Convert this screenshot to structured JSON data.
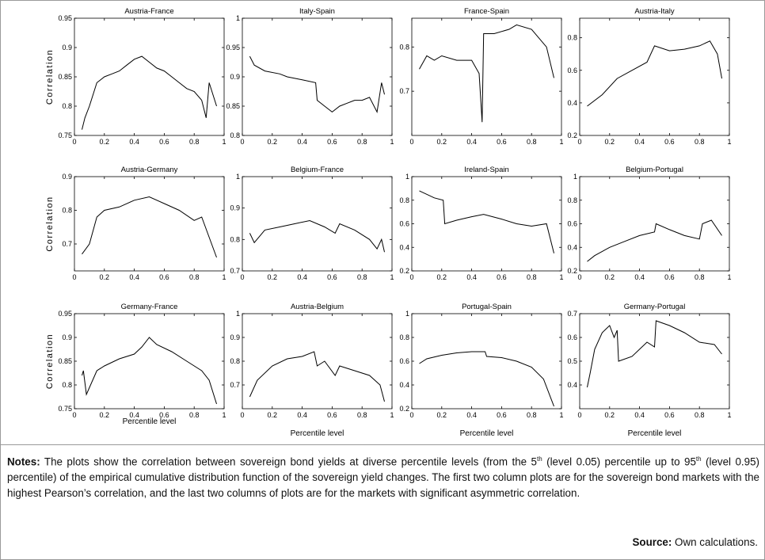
{
  "chart_data": [
    {
      "type": "line",
      "title": "Austria-France",
      "ylabel": "Correlation",
      "color": "#000000",
      "x": [
        0.05,
        0.07,
        0.1,
        0.15,
        0.2,
        0.25,
        0.3,
        0.35,
        0.4,
        0.45,
        0.5,
        0.55,
        0.6,
        0.65,
        0.7,
        0.75,
        0.8,
        0.85,
        0.88,
        0.9,
        0.95
      ],
      "values": [
        0.76,
        0.78,
        0.8,
        0.84,
        0.85,
        0.855,
        0.86,
        0.87,
        0.88,
        0.885,
        0.875,
        0.865,
        0.86,
        0.85,
        0.84,
        0.83,
        0.825,
        0.81,
        0.78,
        0.84,
        0.8
      ],
      "xlim": [
        0,
        1
      ],
      "xticks": [
        0,
        0.2,
        0.4,
        0.6,
        0.8,
        1
      ],
      "ylim": [
        0.75,
        0.95
      ],
      "yticks": [
        0.75,
        0.8,
        0.85,
        0.9,
        0.95
      ]
    },
    {
      "type": "line",
      "title": "Italy-Spain",
      "color": "#000000",
      "x": [
        0.05,
        0.08,
        0.15,
        0.25,
        0.3,
        0.4,
        0.49,
        0.5,
        0.55,
        0.6,
        0.65,
        0.7,
        0.75,
        0.8,
        0.85,
        0.9,
        0.93,
        0.95
      ],
      "values": [
        0.935,
        0.92,
        0.91,
        0.905,
        0.9,
        0.895,
        0.89,
        0.86,
        0.85,
        0.84,
        0.85,
        0.855,
        0.86,
        0.86,
        0.865,
        0.84,
        0.89,
        0.87
      ],
      "xlim": [
        0,
        1
      ],
      "xticks": [
        0,
        0.2,
        0.4,
        0.6,
        0.8,
        1
      ],
      "ylim": [
        0.8,
        1
      ],
      "yticks": [
        0.8,
        0.85,
        0.9,
        0.95,
        1
      ]
    },
    {
      "type": "line",
      "title": "France-Spain",
      "color": "#000000",
      "x": [
        0.05,
        0.1,
        0.15,
        0.2,
        0.3,
        0.4,
        0.45,
        0.47,
        0.48,
        0.55,
        0.65,
        0.7,
        0.8,
        0.9,
        0.95
      ],
      "values": [
        0.75,
        0.78,
        0.77,
        0.78,
        0.77,
        0.77,
        0.74,
        0.63,
        0.83,
        0.83,
        0.84,
        0.85,
        0.84,
        0.8,
        0.73
      ],
      "xlim": [
        0,
        1
      ],
      "xticks": [
        0,
        0.2,
        0.4,
        0.6,
        0.8,
        1
      ],
      "ylim": [
        0.6,
        0.865
      ],
      "yticks": [
        0.7,
        0.8
      ]
    },
    {
      "type": "line",
      "title": "Austria-Italy",
      "color": "#000000",
      "x": [
        0.05,
        0.15,
        0.25,
        0.35,
        0.45,
        0.5,
        0.6,
        0.7,
        0.8,
        0.87,
        0.92,
        0.95
      ],
      "values": [
        0.38,
        0.45,
        0.55,
        0.6,
        0.65,
        0.75,
        0.72,
        0.73,
        0.75,
        0.78,
        0.7,
        0.55
      ],
      "xlim": [
        0,
        1
      ],
      "xticks": [
        0,
        0.2,
        0.4,
        0.6,
        0.8,
        1
      ],
      "ylim": [
        0.2,
        0.92
      ],
      "yticks": [
        0.2,
        0.4,
        0.6,
        0.8
      ]
    },
    {
      "type": "line",
      "title": "Austria-Germany",
      "ylabel": "Correlation",
      "color": "#000000",
      "x": [
        0.05,
        0.1,
        0.15,
        0.2,
        0.3,
        0.4,
        0.5,
        0.6,
        0.7,
        0.8,
        0.85,
        0.9,
        0.95
      ],
      "values": [
        0.67,
        0.7,
        0.78,
        0.8,
        0.81,
        0.83,
        0.84,
        0.82,
        0.8,
        0.77,
        0.78,
        0.72,
        0.66
      ],
      "xlim": [
        0,
        1
      ],
      "xticks": [
        0,
        0.2,
        0.4,
        0.6,
        0.8,
        1
      ],
      "ylim": [
        0.62,
        0.9
      ],
      "yticks": [
        0.7,
        0.8,
        0.9
      ]
    },
    {
      "type": "line",
      "title": "Belgium-France",
      "color": "#000000",
      "x": [
        0.05,
        0.08,
        0.15,
        0.25,
        0.35,
        0.45,
        0.55,
        0.62,
        0.65,
        0.75,
        0.85,
        0.9,
        0.93,
        0.95
      ],
      "values": [
        0.82,
        0.79,
        0.83,
        0.84,
        0.85,
        0.86,
        0.84,
        0.82,
        0.85,
        0.83,
        0.8,
        0.77,
        0.8,
        0.76
      ],
      "xlim": [
        0,
        1
      ],
      "xticks": [
        0,
        0.2,
        0.4,
        0.6,
        0.8,
        1
      ],
      "ylim": [
        0.7,
        1
      ],
      "yticks": [
        0.7,
        0.8,
        0.9,
        1
      ]
    },
    {
      "type": "line",
      "title": "Ireland-Spain",
      "color": "#000000",
      "x": [
        0.05,
        0.15,
        0.21,
        0.22,
        0.3,
        0.4,
        0.48,
        0.6,
        0.7,
        0.8,
        0.9,
        0.95
      ],
      "values": [
        0.88,
        0.82,
        0.8,
        0.6,
        0.63,
        0.66,
        0.68,
        0.64,
        0.6,
        0.58,
        0.6,
        0.35
      ],
      "xlim": [
        0,
        1
      ],
      "xticks": [
        0,
        0.2,
        0.4,
        0.6,
        0.8,
        1
      ],
      "ylim": [
        0.2,
        1
      ],
      "yticks": [
        0.2,
        0.4,
        0.6,
        0.8,
        1
      ]
    },
    {
      "type": "line",
      "title": "Belgium-Portugal",
      "color": "#000000",
      "x": [
        0.05,
        0.1,
        0.2,
        0.3,
        0.4,
        0.5,
        0.51,
        0.6,
        0.7,
        0.8,
        0.82,
        0.88,
        0.95
      ],
      "values": [
        0.28,
        0.33,
        0.4,
        0.45,
        0.5,
        0.53,
        0.6,
        0.55,
        0.5,
        0.47,
        0.6,
        0.63,
        0.5
      ],
      "xlim": [
        0,
        1
      ],
      "xticks": [
        0,
        0.2,
        0.4,
        0.6,
        0.8,
        1
      ],
      "ylim": [
        0.2,
        1
      ],
      "yticks": [
        0.2,
        0.4,
        0.6,
        0.8,
        1
      ]
    },
    {
      "type": "line",
      "title": "Germany-France",
      "ylabel": "Correlation",
      "xlabel": "Percentile level",
      "color": "#000000",
      "x": [
        0.05,
        0.06,
        0.08,
        0.15,
        0.2,
        0.3,
        0.4,
        0.45,
        0.5,
        0.55,
        0.65,
        0.75,
        0.85,
        0.9,
        0.95
      ],
      "values": [
        0.82,
        0.83,
        0.78,
        0.83,
        0.84,
        0.855,
        0.865,
        0.88,
        0.9,
        0.885,
        0.87,
        0.85,
        0.83,
        0.81,
        0.76
      ],
      "xlim": [
        0,
        1
      ],
      "xticks": [
        0,
        0.2,
        0.4,
        0.6,
        0.8,
        1
      ],
      "ylim": [
        0.75,
        0.95
      ],
      "yticks": [
        0.75,
        0.8,
        0.85,
        0.9,
        0.95
      ]
    },
    {
      "type": "line",
      "title": "Austria-Belgium",
      "xlabel": "Percentile level",
      "color": "#000000",
      "x": [
        0.05,
        0.1,
        0.2,
        0.3,
        0.4,
        0.48,
        0.5,
        0.55,
        0.62,
        0.65,
        0.75,
        0.85,
        0.92,
        0.95
      ],
      "values": [
        0.65,
        0.72,
        0.78,
        0.81,
        0.82,
        0.84,
        0.78,
        0.8,
        0.74,
        0.78,
        0.76,
        0.74,
        0.7,
        0.63
      ],
      "xlim": [
        0,
        1
      ],
      "xticks": [
        0,
        0.2,
        0.4,
        0.6,
        0.8,
        1
      ],
      "ylim": [
        0.6,
        1
      ],
      "yticks": [
        0.7,
        0.8,
        0.9,
        1
      ]
    },
    {
      "type": "line",
      "title": "Portugal-Spain",
      "xlabel": "Percentile level",
      "color": "#000000",
      "x": [
        0.05,
        0.1,
        0.2,
        0.3,
        0.4,
        0.49,
        0.5,
        0.6,
        0.7,
        0.8,
        0.88,
        0.95
      ],
      "values": [
        0.58,
        0.62,
        0.65,
        0.67,
        0.68,
        0.68,
        0.64,
        0.63,
        0.6,
        0.55,
        0.45,
        0.22
      ],
      "xlim": [
        0,
        1
      ],
      "xticks": [
        0,
        0.2,
        0.4,
        0.6,
        0.8,
        1
      ],
      "ylim": [
        0.2,
        1
      ],
      "yticks": [
        0.2,
        0.4,
        0.6,
        0.8,
        1
      ]
    },
    {
      "type": "line",
      "title": "Germany-Portugal",
      "xlabel": "Percentile level",
      "color": "#000000",
      "x": [
        0.05,
        0.07,
        0.1,
        0.15,
        0.2,
        0.23,
        0.25,
        0.26,
        0.35,
        0.45,
        0.5,
        0.51,
        0.6,
        0.7,
        0.8,
        0.9,
        0.95
      ],
      "values": [
        0.39,
        0.45,
        0.55,
        0.62,
        0.65,
        0.6,
        0.63,
        0.5,
        0.52,
        0.58,
        0.56,
        0.67,
        0.65,
        0.62,
        0.58,
        0.57,
        0.53
      ],
      "xlim": [
        0,
        1
      ],
      "xticks": [
        0,
        0.2,
        0.4,
        0.6,
        0.8,
        1
      ],
      "ylim": [
        0.3,
        0.7
      ],
      "yticks": [
        0.4,
        0.5,
        0.6,
        0.7
      ]
    }
  ],
  "notes": {
    "label": "Notes:",
    "text": [
      "The plots show the correlation between sovereign bond yields at diverse percentile levels (from the 5",
      "th",
      " (level 0.05) percentile up to 95",
      "th",
      " (level 0.95) percentile) of the empirical cumulative distribution function of the sovereign yield changes. The first two column plots are for the sovereign bond markets with the highest Pearson’s correlation, and the last two columns of plots are for the markets with significant asymmetric correlation."
    ]
  },
  "source": {
    "label": "Source:",
    "text": "Own calculations."
  }
}
